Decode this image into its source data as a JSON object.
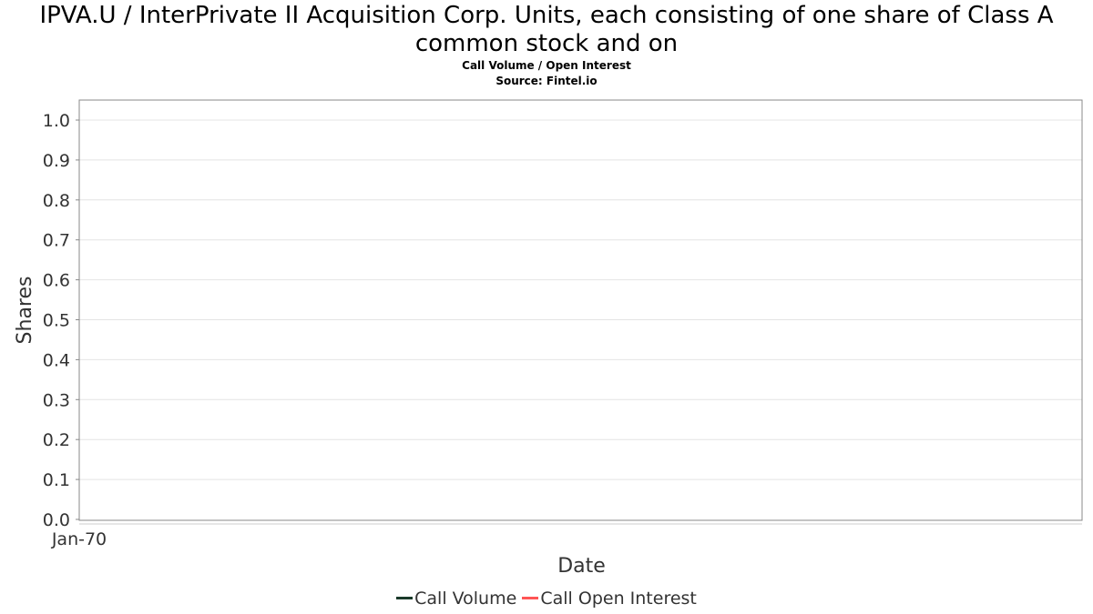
{
  "title": "IPVA.U / InterPrivate II Acquisition Corp. Units, each consisting of one share of Class A common stock and on",
  "subtitle_1": "Call Volume / Open Interest",
  "subtitle_2": "Source: Fintel.io",
  "chart_data": {
    "type": "line",
    "title": "IPVA.U / InterPrivate II Acquisition Corp. Units, each consisting of one share of Class A common stock and on",
    "subtitle": "Call Volume / Open Interest",
    "xlabel": "Date",
    "ylabel": "Shares",
    "x_ticks": [
      "Jan-70"
    ],
    "y_ticks": [
      "0.0",
      "0.1",
      "0.2",
      "0.3",
      "0.4",
      "0.5",
      "0.6",
      "0.7",
      "0.8",
      "0.9",
      "1.0"
    ],
    "ylim": [
      0,
      1.0
    ],
    "grid": true,
    "legend_position": "bottom",
    "series": [
      {
        "name": "Call Volume",
        "color": "#1a3a2a",
        "x": [],
        "values": []
      },
      {
        "name": "Call Open Interest",
        "color": "#ff5555",
        "x": [],
        "values": []
      }
    ]
  }
}
